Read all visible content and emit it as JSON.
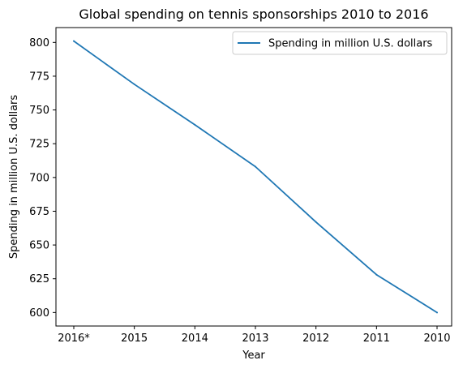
{
  "chart_data": {
    "type": "line",
    "title": "Global spending on tennis sponsorships 2010 to 2016",
    "xlabel": "Year",
    "ylabel": "Spending in million U.S. dollars",
    "categories": [
      "2016*",
      "2015",
      "2014",
      "2013",
      "2012",
      "2011",
      "2010"
    ],
    "series": [
      {
        "name": "Spending in million U.S. dollars",
        "values": [
          801,
          769,
          739,
          708,
          667,
          628,
          600
        ],
        "color": "#1f77b4"
      }
    ],
    "ylim": [
      590,
      811
    ],
    "yticks": [
      600,
      625,
      650,
      675,
      700,
      725,
      750,
      775,
      800
    ],
    "legend_position": "top-right",
    "grid": false
  }
}
